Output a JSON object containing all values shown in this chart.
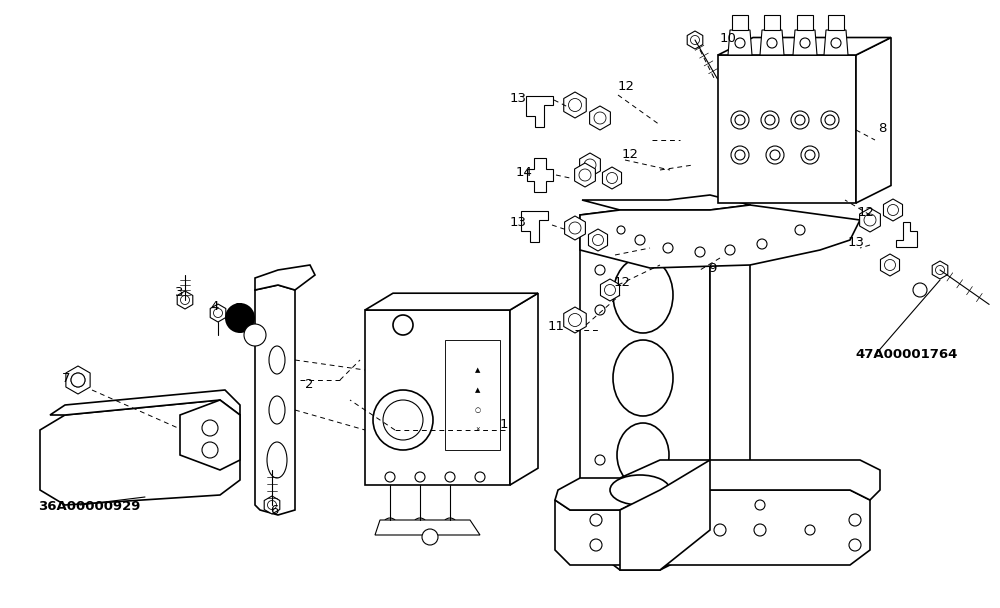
{
  "bg_color": "#ffffff",
  "line_color": "#000000",
  "fig_width": 10.0,
  "fig_height": 6.08,
  "dpi": 100
}
